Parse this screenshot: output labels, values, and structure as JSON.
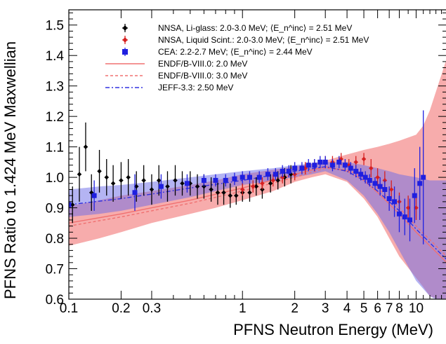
{
  "chart_data": {
    "type": "scatter",
    "xlabel": "PFNS Neutron Energy (MeV)",
    "ylabel": "PFNS Ratio to 1.424 MeV Maxwellian",
    "xscale": "log",
    "xlim": [
      0.1,
      15
    ],
    "ylim": [
      0.6,
      1.55
    ],
    "x_ticks": [
      {
        "v": 0.1,
        "label": "0.1"
      },
      {
        "v": 0.2,
        "label": "0.2"
      },
      {
        "v": 0.3,
        "label": "0.3"
      },
      {
        "v": 1,
        "label": "1"
      },
      {
        "v": 2,
        "label": "2"
      },
      {
        "v": 3,
        "label": "3"
      },
      {
        "v": 4,
        "label": "4"
      },
      {
        "v": 5,
        "label": "5"
      },
      {
        "v": 6,
        "label": "6"
      },
      {
        "v": 7,
        "label": "7"
      },
      {
        "v": 8,
        "label": "8"
      },
      {
        "v": 10,
        "label": "10"
      }
    ],
    "y_ticks": [
      {
        "v": 0.6,
        "label": "0.6"
      },
      {
        "v": 0.7,
        "label": "0.7"
      },
      {
        "v": 0.8,
        "label": "0.8"
      },
      {
        "v": 0.9,
        "label": "0.9"
      },
      {
        "v": 1.0,
        "label": "1.0"
      },
      {
        "v": 1.1,
        "label": "1.1"
      },
      {
        "v": 1.2,
        "label": "1.2"
      },
      {
        "v": 1.3,
        "label": "1.3"
      },
      {
        "v": 1.4,
        "label": "1.4"
      },
      {
        "v": 1.5,
        "label": "1.5"
      }
    ],
    "legend_position": "top-center",
    "legend": [
      {
        "label": "NNSA, Li-glass: 2.0-3.0 MeV; ⟨E_n^inc⟩ = 2.51 MeV",
        "kind": "marker",
        "marker": "diamond",
        "color": "#000000"
      },
      {
        "label": "NNSA, Liquid Scint.: 2.0-3.0 MeV; ⟨E_n^inc⟩ = 2.51 MeV",
        "kind": "marker",
        "marker": "diamond",
        "color": "#d62020"
      },
      {
        "label": "CEA: 2.2-2.7 MeV; ⟨E_n^inc⟩ = 2.44 MeV",
        "kind": "marker",
        "marker": "square",
        "color": "#1f1fe0"
      },
      {
        "label": "ENDF/B-VIII.0: 2.0 MeV",
        "kind": "line",
        "dash": "",
        "color": "#f07070"
      },
      {
        "label": "ENDF/B-VIII.0: 3.0 MeV",
        "kind": "line",
        "dash": "4,3",
        "color": "#f07070"
      },
      {
        "label": "JEFF-3.3: 2.50 MeV",
        "kind": "line",
        "dash": "6,3,2,3",
        "color": "#3030e0"
      }
    ],
    "bands": [
      {
        "name": "ENDF/B-VIII.0 uncertainty",
        "color": "#f28080",
        "opacity": 0.65,
        "x": [
          0.1,
          0.15,
          0.2,
          0.3,
          0.5,
          0.7,
          1.0,
          1.5,
          2.0,
          2.5,
          3.0,
          4.0,
          5.0,
          6.0,
          7.0,
          8.0,
          10.0,
          11.0,
          12.0,
          15.0
        ],
        "upper": [
          0.905,
          0.925,
          0.94,
          0.955,
          0.975,
          0.99,
          1.01,
          1.025,
          1.035,
          1.045,
          1.055,
          1.075,
          1.09,
          1.1,
          1.11,
          1.12,
          1.14,
          1.17,
          1.22,
          1.39
        ],
        "lower": [
          0.775,
          0.8,
          0.82,
          0.85,
          0.88,
          0.9,
          0.925,
          0.955,
          0.985,
          1.0,
          1.01,
          0.985,
          0.93,
          0.87,
          0.8,
          0.74,
          0.67,
          0.64,
          0.61,
          0.59
        ]
      },
      {
        "name": "JEFF-3.3 uncertainty",
        "color": "#6a6ae8",
        "opacity": 0.5,
        "x": [
          0.1,
          0.15,
          0.2,
          0.3,
          0.5,
          0.7,
          1.0,
          1.5,
          2.0,
          2.5,
          3.0,
          4.0,
          5.0,
          6.0,
          7.0,
          8.0,
          10.0,
          12.0,
          15.0
        ],
        "upper": [
          0.96,
          0.97,
          0.975,
          0.985,
          1.0,
          1.01,
          1.02,
          1.03,
          1.04,
          1.045,
          1.05,
          1.05,
          1.04,
          1.03,
          1.02,
          1.01,
          1.0,
          0.99,
          0.99
        ],
        "lower": [
          0.87,
          0.88,
          0.89,
          0.91,
          0.935,
          0.955,
          0.975,
          0.99,
          1.0,
          1.01,
          1.02,
          0.99,
          0.94,
          0.88,
          0.82,
          0.76,
          0.66,
          0.61,
          0.58
        ]
      }
    ],
    "series": [
      {
        "name": "ENDF/B-VIII.0: 2.0 MeV",
        "kind": "line",
        "color": "#f07070",
        "dash": "",
        "x": [
          0.1,
          0.2,
          0.3,
          0.5,
          1.0,
          2.0,
          3.0,
          4.0,
          5.0,
          6.0,
          8.0,
          10.0,
          15.0
        ],
        "y": [
          0.85,
          0.88,
          0.9,
          0.925,
          0.965,
          1.01,
          1.035,
          1.02,
          0.99,
          0.95,
          0.88,
          0.82,
          0.72
        ]
      },
      {
        "name": "ENDF/B-VIII.0: 3.0 MeV",
        "kind": "line",
        "color": "#f07070",
        "dash": "4,3",
        "x": [
          0.1,
          0.2,
          0.3,
          0.5,
          1.0,
          2.0,
          3.0,
          4.0,
          5.0,
          6.0,
          8.0,
          10.0,
          15.0
        ],
        "y": [
          0.84,
          0.87,
          0.89,
          0.915,
          0.955,
          1.0,
          1.03,
          1.025,
          1.0,
          0.965,
          0.9,
          0.84,
          0.74
        ]
      },
      {
        "name": "JEFF-3.3: 2.50 MeV",
        "kind": "line",
        "color": "#3030e0",
        "dash": "6,3,2,3",
        "x": [
          0.1,
          0.2,
          0.3,
          0.5,
          1.0,
          2.0,
          3.0,
          4.0,
          5.0,
          6.0,
          8.0,
          10.0,
          15.0
        ],
        "y": [
          0.91,
          0.93,
          0.945,
          0.965,
          0.99,
          1.02,
          1.035,
          1.02,
          0.99,
          0.955,
          0.89,
          0.83,
          0.73
        ]
      },
      {
        "name": "NNSA, Li-glass: 2.0-3.0 MeV; ⟨E_n^inc⟩ = 2.51 MeV",
        "kind": "points",
        "marker": "diamond",
        "color": "#000000",
        "x": [
          0.105,
          0.115,
          0.125,
          0.135,
          0.15,
          0.165,
          0.18,
          0.2,
          0.22,
          0.245,
          0.27,
          0.3,
          0.33,
          0.37,
          0.41,
          0.45,
          0.5,
          0.55,
          0.6,
          0.66,
          0.72,
          0.78,
          0.85,
          0.92,
          1.0,
          1.1,
          1.2,
          1.3,
          1.45,
          1.6,
          1.75,
          1.9
        ],
        "y": [
          0.91,
          1.01,
          1.1,
          0.95,
          1.02,
          1.0,
          0.98,
          0.99,
          1.0,
          0.97,
          0.99,
          0.96,
          0.99,
          0.97,
          0.99,
          0.98,
          0.98,
          0.97,
          0.97,
          0.96,
          0.95,
          0.95,
          0.94,
          0.94,
          0.95,
          0.95,
          0.97,
          0.96,
          0.98,
          0.99,
          1.0,
          1.01
        ],
        "err": [
          0.06,
          0.09,
          0.08,
          0.06,
          0.07,
          0.06,
          0.06,
          0.06,
          0.06,
          0.05,
          0.05,
          0.05,
          0.05,
          0.05,
          0.05,
          0.04,
          0.04,
          0.04,
          0.04,
          0.04,
          0.04,
          0.04,
          0.04,
          0.03,
          0.03,
          0.03,
          0.03,
          0.03,
          0.03,
          0.03,
          0.03,
          0.03
        ]
      },
      {
        "name": "NNSA, Liquid Scint.: 2.0-3.0 MeV; ⟨E_n^inc⟩ = 2.51 MeV",
        "kind": "points",
        "marker": "diamond",
        "color": "#d62020",
        "x": [
          1.0,
          1.15,
          1.3,
          1.5,
          1.7,
          2.0,
          2.3,
          2.6,
          3.0,
          3.3,
          3.7,
          4.1,
          4.5,
          5.0,
          5.5,
          6.0,
          6.6,
          7.2,
          8.0,
          9.0,
          10.0
        ],
        "y": [
          0.96,
          0.97,
          0.98,
          0.99,
          1.0,
          1.01,
          1.03,
          1.04,
          1.05,
          1.05,
          1.06,
          1.04,
          1.05,
          1.06,
          1.03,
          1.0,
          0.99,
          0.96,
          0.92,
          0.9,
          0.9
        ],
        "err": [
          0.02,
          0.02,
          0.02,
          0.02,
          0.02,
          0.02,
          0.02,
          0.02,
          0.02,
          0.02,
          0.02,
          0.02,
          0.02,
          0.02,
          0.03,
          0.03,
          0.03,
          0.03,
          0.03,
          0.04,
          0.04
        ]
      },
      {
        "name": "CEA: 2.2-2.7 MeV; ⟨E_n^inc⟩ = 2.44 MeV",
        "kind": "points",
        "marker": "square",
        "color": "#1f1fe0",
        "x": [
          0.1,
          0.14,
          0.24,
          0.34,
          0.48,
          0.6,
          0.7,
          0.8,
          0.9,
          1.0,
          1.1,
          1.25,
          1.4,
          1.55,
          1.7,
          1.85,
          2.0,
          2.2,
          2.4,
          2.6,
          2.8,
          3.0,
          3.3,
          3.6,
          3.9,
          4.2,
          4.5,
          4.8,
          5.1,
          5.4,
          5.8,
          6.2,
          6.6,
          7.0,
          7.5,
          8.0,
          8.6,
          9.2,
          9.8,
          10.5,
          11.0
        ],
        "y": [
          0.91,
          0.94,
          0.95,
          0.97,
          0.98,
          0.99,
          0.99,
          0.99,
          0.995,
          1.0,
          1.0,
          1.0,
          1.01,
          1.01,
          1.02,
          1.02,
          1.03,
          1.03,
          1.04,
          1.04,
          1.05,
          1.05,
          1.04,
          1.05,
          1.04,
          1.03,
          1.02,
          1.01,
          1.0,
          0.99,
          0.98,
          0.97,
          0.96,
          0.93,
          0.92,
          0.88,
          0.87,
          0.86,
          0.94,
          0.98,
          1.0
        ],
        "err": [
          0.04,
          0.05,
          0.06,
          0.04,
          0.03,
          0.02,
          0.02,
          0.02,
          0.02,
          0.02,
          0.02,
          0.02,
          0.02,
          0.02,
          0.02,
          0.02,
          0.02,
          0.02,
          0.02,
          0.02,
          0.02,
          0.02,
          0.02,
          0.02,
          0.02,
          0.02,
          0.02,
          0.02,
          0.02,
          0.02,
          0.02,
          0.03,
          0.03,
          0.04,
          0.05,
          0.06,
          0.06,
          0.07,
          0.09,
          0.12,
          0.22
        ]
      }
    ]
  }
}
